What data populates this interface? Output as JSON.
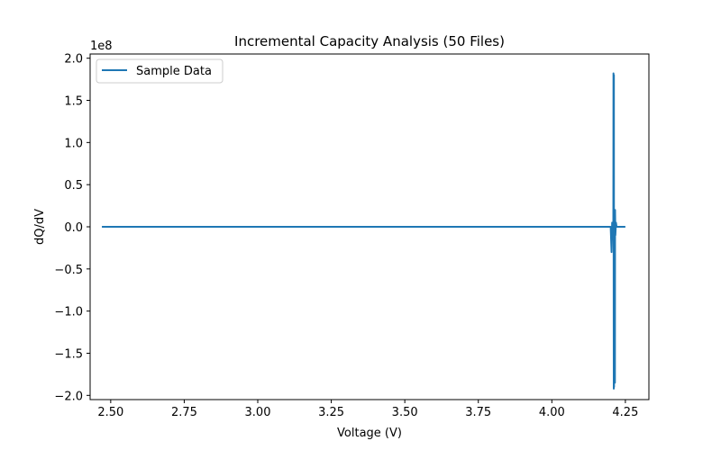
{
  "chart_data": {
    "type": "line",
    "title": "Incremental Capacity Analysis (50 Files)",
    "xlabel": "Voltage (V)",
    "ylabel": "dQ/dV",
    "y_offset_label": "1e8",
    "xlim": [
      2.43,
      4.33
    ],
    "ylim": [
      -2.05,
      2.05
    ],
    "x_ticks": [
      2.5,
      2.75,
      3.0,
      3.25,
      3.5,
      3.75,
      4.0,
      4.25
    ],
    "x_tick_labels": [
      "2.50",
      "2.75",
      "3.00",
      "3.25",
      "3.50",
      "3.75",
      "4.00",
      "4.25"
    ],
    "y_ticks": [
      -2.0,
      -1.5,
      -1.0,
      -0.5,
      0.0,
      0.5,
      1.0,
      1.5,
      2.0
    ],
    "y_tick_labels": [
      "−2.0",
      "−1.5",
      "−1.0",
      "−0.5",
      "0.0",
      "0.5",
      "1.0",
      "1.5",
      "2.0"
    ],
    "grid": false,
    "legend_position": "top-left",
    "series": [
      {
        "name": "Sample Data",
        "color": "#1f77b4",
        "x": [
          2.47,
          3.0,
          3.5,
          4.0,
          4.2,
          4.203,
          4.205,
          4.207,
          4.209,
          4.2095,
          4.2105,
          4.211,
          4.2115,
          4.212,
          4.213,
          4.214,
          4.2145,
          4.215,
          4.216,
          4.218,
          4.22,
          4.25
        ],
        "y": [
          0.0,
          0.0,
          0.0,
          0.0,
          0.0,
          -0.3,
          0.05,
          -0.15,
          0.0,
          1.82,
          -1.92,
          1.8,
          -1.9,
          0.2,
          -0.2,
          0.15,
          -1.85,
          0.2,
          -0.1,
          0.05,
          0.0,
          0.0
        ]
      }
    ]
  }
}
